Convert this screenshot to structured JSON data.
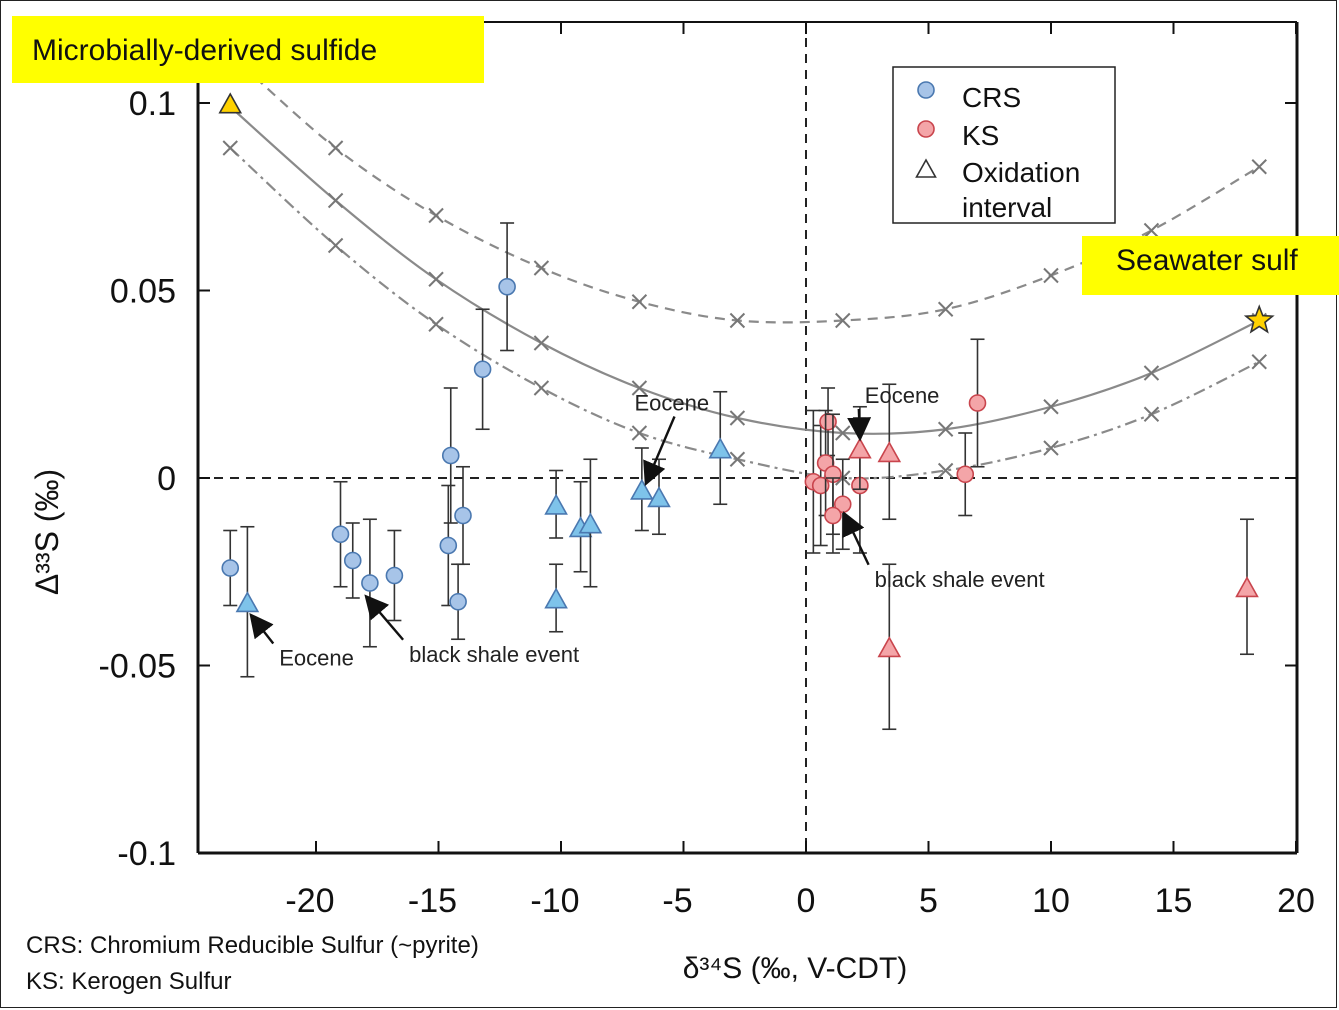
{
  "highlights": {
    "microbial": "Microbially-derived sulfide",
    "seawater": "Seawater sulf"
  },
  "footnotes": {
    "crs": "CRS: Chromium Reducible Sulfur (~pyrite)",
    "ks": "KS: Kerogen Sulfur"
  },
  "chart_data": {
    "type": "scatter",
    "xlabel": "δ³⁴S (‰, V-CDT)",
    "ylabel": "Δ³³S (‰)",
    "xlim": [
      -25,
      20
    ],
    "ylim": [
      -0.1,
      0.12
    ],
    "xticks": [
      -20,
      -15,
      -10,
      -5,
      0,
      5,
      10,
      15,
      20
    ],
    "yticks": [
      -0.1,
      -0.05,
      0,
      0.05,
      0.1
    ],
    "ytick_labels": [
      "-0.1",
      "-0.05",
      "0",
      "0.05",
      "0.1"
    ],
    "legend": {
      "placement": "top-right",
      "entries": [
        "CRS",
        "KS",
        "Oxidation\ninterval"
      ]
    },
    "colors": {
      "crs_fill": "#a7c4e8",
      "crs_edge": "#4a78b0",
      "crs_triangle_fill": "#7ec3ea",
      "ks_fill": "#f4a5a8",
      "ks_edge": "#c9454d",
      "endmember_fill": "#ffd200",
      "curve": "#8a8a8a"
    },
    "curves": [
      {
        "style": "solid",
        "x": [
          -23.5,
          -19.2,
          -15.1,
          -10.8,
          -6.8,
          -2.8,
          1.5,
          5.7,
          10,
          14.1,
          18.5
        ],
        "y": [
          0.099,
          0.074,
          0.053,
          0.036,
          0.024,
          0.016,
          0.012,
          0.013,
          0.019,
          0.028,
          0.042
        ]
      },
      {
        "style": "dashed",
        "x": [
          -23.5,
          -19.2,
          -15.1,
          -10.8,
          -6.8,
          -2.8,
          1.5,
          5.7,
          10,
          14.1,
          18.5
        ],
        "y": [
          0.113,
          0.088,
          0.07,
          0.056,
          0.047,
          0.042,
          0.042,
          0.045,
          0.054,
          0.066,
          0.083
        ]
      },
      {
        "style": "dashdot",
        "x": [
          -23.5,
          -19.2,
          -15.1,
          -10.8,
          -6.8,
          -2.8,
          1.5,
          5.7,
          10,
          14.1,
          18.5
        ],
        "y": [
          0.088,
          0.062,
          0.041,
          0.024,
          0.012,
          0.005,
          0.0,
          0.002,
          0.008,
          0.017,
          0.031
        ]
      }
    ],
    "series": [
      {
        "name": "CRS",
        "marker": "circle",
        "points": [
          {
            "x": -23.5,
            "y": -0.024,
            "err": 0.01
          },
          {
            "x": -19.0,
            "y": -0.015,
            "err": 0.014
          },
          {
            "x": -18.5,
            "y": -0.022,
            "err": 0.01
          },
          {
            "x": -17.8,
            "y": -0.028,
            "err": 0.017
          },
          {
            "x": -16.8,
            "y": -0.026,
            "err": 0.012
          },
          {
            "x": -14.5,
            "y": 0.006,
            "err": 0.018
          },
          {
            "x": -14.6,
            "y": -0.018,
            "err": 0.016
          },
          {
            "x": -14.0,
            "y": -0.01,
            "err": 0.013
          },
          {
            "x": -14.2,
            "y": -0.033,
            "err": 0.01
          },
          {
            "x": -13.2,
            "y": 0.029,
            "err": 0.016
          },
          {
            "x": -12.2,
            "y": 0.051,
            "err": 0.017
          }
        ]
      },
      {
        "name": "CRS",
        "marker": "triangle",
        "points": [
          {
            "x": -22.8,
            "y": -0.033,
            "err": 0.02
          },
          {
            "x": -10.2,
            "y": -0.007,
            "err": 0.009
          },
          {
            "x": -10.2,
            "y": -0.032,
            "err": 0.009
          },
          {
            "x": -9.2,
            "y": -0.013,
            "err": 0.012
          },
          {
            "x": -8.8,
            "y": -0.012,
            "err": 0.017
          },
          {
            "x": -6.7,
            "y": -0.003,
            "err": 0.011
          },
          {
            "x": -6.0,
            "y": -0.005,
            "err": 0.01
          },
          {
            "x": -3.5,
            "y": 0.008,
            "err": 0.015
          }
        ]
      },
      {
        "name": "KS",
        "marker": "circle",
        "points": [
          {
            "x": 0.3,
            "y": -0.001,
            "err": 0.019
          },
          {
            "x": 0.6,
            "y": -0.002,
            "err": 0.016
          },
          {
            "x": 0.9,
            "y": 0.015,
            "err": 0.009
          },
          {
            "x": 0.8,
            "y": 0.004,
            "err": 0.014
          },
          {
            "x": 1.1,
            "y": 0.001,
            "err": 0.016
          },
          {
            "x": 1.5,
            "y": -0.007,
            "err": 0.012
          },
          {
            "x": 1.1,
            "y": -0.01,
            "err": 0.01
          },
          {
            "x": 2.2,
            "y": -0.002,
            "err": 0.018
          },
          {
            "x": 6.5,
            "y": 0.001,
            "err": 0.011
          },
          {
            "x": 7.0,
            "y": 0.02,
            "err": 0.017
          }
        ]
      },
      {
        "name": "KS",
        "marker": "triangle",
        "points": [
          {
            "x": 2.2,
            "y": 0.008,
            "err": 0.011
          },
          {
            "x": 3.4,
            "y": 0.007,
            "err": 0.018
          },
          {
            "x": 3.4,
            "y": -0.045,
            "err": 0.022
          },
          {
            "x": 18.0,
            "y": -0.029,
            "err": 0.018
          }
        ]
      }
    ],
    "endmembers": [
      {
        "marker": "triangle",
        "x": -23.5,
        "y": 0.1
      },
      {
        "marker": "star",
        "x": 18.5,
        "y": 0.042
      }
    ],
    "annotations": [
      {
        "text": "Eocene",
        "x": -21.5,
        "y": -0.05,
        "arrow_to": [
          -22.6,
          -0.037
        ]
      },
      {
        "text": "black shale event",
        "x": -16.2,
        "y": -0.049,
        "arrow_to": [
          -17.9,
          -0.032
        ]
      },
      {
        "text": "Eocene",
        "x": -7.0,
        "y": 0.018,
        "arrow_to": [
          -6.5,
          -0.001
        ]
      },
      {
        "text": "Eocene",
        "x": 2.4,
        "y": 0.02,
        "arrow_to": [
          2.2,
          0.011
        ]
      },
      {
        "text": "black shale event",
        "x": 2.8,
        "y": -0.029,
        "arrow_to": [
          1.6,
          -0.01
        ]
      }
    ]
  }
}
